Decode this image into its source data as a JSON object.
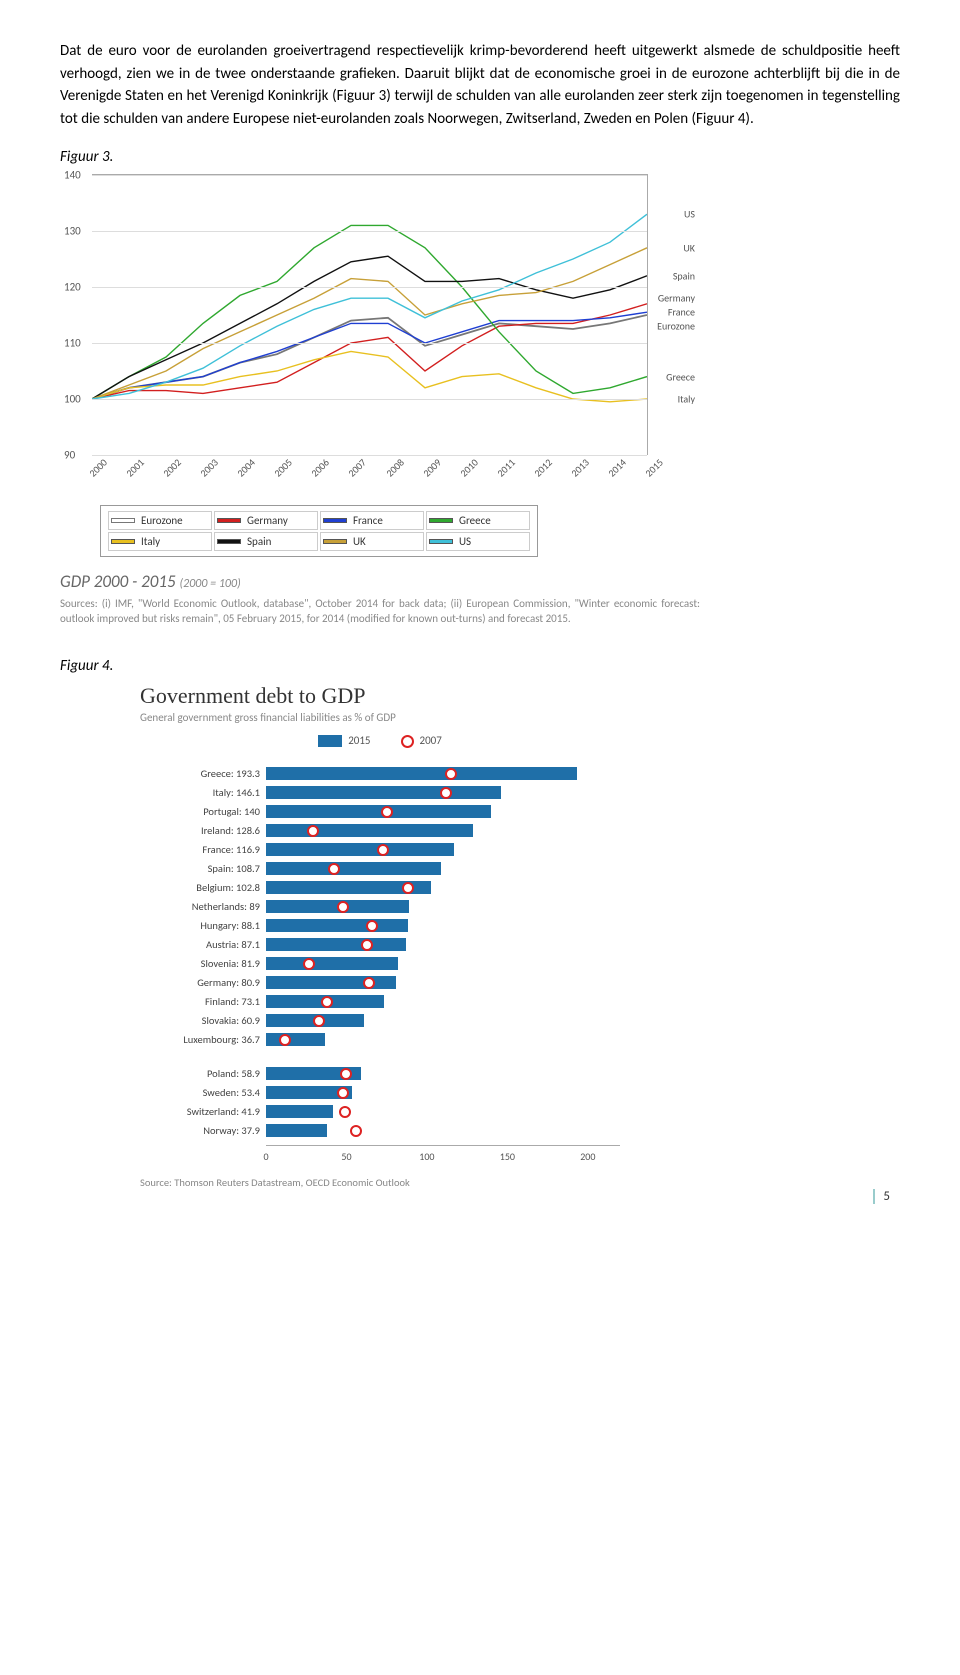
{
  "paragraph": "Dat de euro voor de eurolanden groeivertragend respectievelijk krimp-bevorderend heeft uitgewerkt alsmede de schuldpositie heeft verhoogd, zien we in de twee onderstaande grafieken. Daaruit blijkt dat de economische groei in de eurozone achterblijft bij die in de Verenigde Staten en het Verenigd Koninkrijk (Figuur 3) terwijl de schulden van alle eurolanden zeer sterk zijn toegenomen in tegenstelling tot die schulden van andere Europese niet-eurolanden zoals Noorwegen, Zwitserland, Zweden en Polen (Figuur 4).",
  "fig3label": "Figuur 3.",
  "fig4label": "Figuur 4.",
  "pagenum": "5",
  "fig3": {
    "ylim": [
      90,
      140
    ],
    "yticks": [
      90,
      100,
      110,
      120,
      130,
      140
    ],
    "years": [
      "2000",
      "2001",
      "2002",
      "2003",
      "2004",
      "2005",
      "2006",
      "2007",
      "2008",
      "2009",
      "2010",
      "2011",
      "2012",
      "2013",
      "2014",
      "2015"
    ],
    "series": [
      {
        "name": "Eurozone",
        "color": "#ffffff",
        "stroke": "#777",
        "values": [
          100,
          102,
          103,
          104,
          106.5,
          108,
          111,
          114,
          114.5,
          109.5,
          111.5,
          113.5,
          113,
          112.5,
          113.5,
          115
        ]
      },
      {
        "name": "Germany",
        "color": "#d21f1f",
        "values": [
          100,
          101.5,
          101.5,
          101,
          102,
          103,
          106.5,
          110,
          111,
          105,
          109.5,
          113,
          113.5,
          113.5,
          115,
          117
        ]
      },
      {
        "name": "France",
        "color": "#1f3fd2",
        "values": [
          100,
          102,
          103,
          104,
          106.5,
          108.5,
          111,
          113.5,
          113.5,
          110,
          112,
          114,
          114,
          114,
          114.5,
          115.5
        ]
      },
      {
        "name": "Greece",
        "color": "#2fa82f",
        "values": [
          100,
          104,
          107.5,
          113.5,
          118.5,
          121,
          127,
          131,
          131,
          127,
          120,
          112,
          105,
          101,
          102,
          104
        ]
      },
      {
        "name": "Italy",
        "color": "#e8c020",
        "values": [
          100,
          102,
          102.5,
          102.5,
          104,
          105,
          107,
          108.5,
          107.5,
          102,
          104,
          104.5,
          102,
          100,
          99.5,
          100
        ]
      },
      {
        "name": "Spain",
        "color": "#111",
        "values": [
          100,
          104,
          107,
          110,
          113.5,
          117,
          121,
          124.5,
          125.5,
          121,
          121,
          121.5,
          119.5,
          118,
          119.5,
          122
        ]
      },
      {
        "name": "UK",
        "color": "#c7a038",
        "values": [
          100,
          102.5,
          105,
          109,
          112,
          115,
          118,
          121.5,
          121,
          115,
          117,
          118.5,
          119,
          121,
          124,
          127
        ]
      },
      {
        "name": "US",
        "color": "#3fc0d8",
        "values": [
          100,
          101,
          103,
          105.5,
          109.5,
          113,
          116,
          118,
          118,
          114.5,
          117.5,
          119.5,
          122.5,
          125,
          128,
          133
        ]
      }
    ],
    "endlabels": [
      {
        "name": "US",
        "y": 133,
        "color": "#555"
      },
      {
        "name": "UK",
        "y": 127,
        "color": "#555"
      },
      {
        "name": "Spain",
        "y": 122,
        "color": "#555"
      },
      {
        "name": "Germany",
        "y": 118,
        "color": "#555"
      },
      {
        "name": "France",
        "y": 115.5,
        "color": "#555"
      },
      {
        "name": "Eurozone",
        "y": 113,
        "color": "#555"
      },
      {
        "name": "Greece",
        "y": 104,
        "color": "#555"
      },
      {
        "name": "Italy",
        "y": 100,
        "color": "#555"
      }
    ],
    "legend_rows": [
      [
        {
          "t": "Eurozone",
          "c": "#fff",
          "b": "#777"
        },
        {
          "t": "Germany",
          "c": "#d21f1f"
        },
        {
          "t": "France",
          "c": "#1f3fd2"
        },
        {
          "t": "Greece",
          "c": "#2fa82f"
        }
      ],
      [
        {
          "t": "Italy",
          "c": "#e8c020"
        },
        {
          "t": "Spain",
          "c": "#111"
        },
        {
          "t": "UK",
          "c": "#c7a038"
        },
        {
          "t": "US",
          "c": "#3fc0d8"
        }
      ]
    ],
    "title_main": "GDP 2000 - 2015",
    "title_sub": "(2000 = 100)",
    "sources": "Sources: (i) IMF, \"World Economic Outlook, database\", October 2014 for back data; (ii) European Commission, \"Winter economic forecast: outlook improved but risks remain\", 05 February 2015, for 2014 (modified for known out-turns) and forecast 2015."
  },
  "fig4": {
    "title": "Government debt to GDP",
    "subtitle": "General government gross financial liabilities as % of GDP",
    "legend": {
      "a": "2015",
      "b": "2007"
    },
    "xmax": 220,
    "xticks": [
      0,
      50,
      100,
      150,
      200
    ],
    "groupA": [
      {
        "c": "Greece",
        "v": 193.3,
        "m": 115
      },
      {
        "c": "Italy",
        "v": 146.1,
        "m": 112
      },
      {
        "c": "Portugal",
        "v": 140,
        "m": 75
      },
      {
        "c": "Ireland",
        "v": 128.6,
        "m": 29
      },
      {
        "c": "France",
        "v": 116.9,
        "m": 73
      },
      {
        "c": "Spain",
        "v": 108.7,
        "m": 42
      },
      {
        "c": "Belgium",
        "v": 102.8,
        "m": 88
      },
      {
        "c": "Netherlands",
        "v": 89,
        "m": 48
      },
      {
        "c": "Hungary",
        "v": 88.1,
        "m": 66
      },
      {
        "c": "Austria",
        "v": 87.1,
        "m": 63
      },
      {
        "c": "Slovenia",
        "v": 81.9,
        "m": 27
      },
      {
        "c": "Germany",
        "v": 80.9,
        "m": 64
      },
      {
        "c": "Finland",
        "v": 73.1,
        "m": 38
      },
      {
        "c": "Slovakia",
        "v": 60.9,
        "m": 33
      },
      {
        "c": "Luxembourg",
        "v": 36.7,
        "m": 12
      }
    ],
    "groupB": [
      {
        "c": "Poland",
        "v": 58.9,
        "m": 50
      },
      {
        "c": "Sweden",
        "v": 53.4,
        "m": 48
      },
      {
        "c": "Switzerland",
        "v": 41.9,
        "m": 49
      },
      {
        "c": "Norway",
        "v": 37.9,
        "m": 56
      }
    ],
    "source": "Source: Thomson Reuters Datastream, OECD Economic Outlook"
  }
}
